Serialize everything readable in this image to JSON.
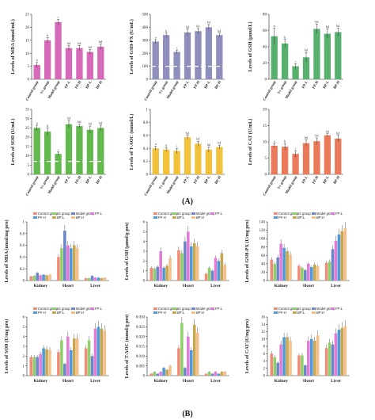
{
  "figure": {
    "label_a": "(A)",
    "label_b": "(B)"
  },
  "colors": {
    "a_panels": [
      "#d66ab8",
      "#8e8fbd",
      "#57b06e",
      "#63b84e",
      "#f2c13a",
      "#ea7a5a"
    ],
    "groups": [
      "#f28b78",
      "#8fcf6a",
      "#6b86c9",
      "#e27bd6",
      "#4c9ad8",
      "#c8a64e",
      "#f3c08c"
    ]
  },
  "chart_data": [
    {
      "type": "bar",
      "panel": "A1",
      "ylabel": "Levels of MDA (nmol/mL)",
      "categories": [
        "Control group",
        "Vc group",
        "Model group",
        "FP-L",
        "FP-H",
        "BP-L",
        "BP-H"
      ],
      "ylim": [
        0,
        25
      ],
      "yticks": [
        0,
        5,
        10,
        15,
        20,
        25
      ],
      "values": [
        5.5,
        15,
        22,
        12,
        12,
        10.5,
        12.5
      ],
      "errors": [
        1,
        1,
        1,
        1,
        1,
        1,
        1
      ],
      "labels": [
        "a",
        "b",
        "c",
        "bd",
        "bd",
        "bd",
        "bd"
      ]
    },
    {
      "type": "bar",
      "panel": "A2",
      "ylabel": "Levels of GSH-PX (U/mL)",
      "categories": [
        "Control group",
        "Vc group",
        "Model group",
        "FP-L",
        "FP-H",
        "BP-L",
        "BP-H"
      ],
      "ylim": [
        0,
        500
      ],
      "yticks": [
        0,
        100,
        200,
        300,
        400,
        500
      ],
      "values": [
        290,
        340,
        210,
        360,
        370,
        400,
        340
      ],
      "errors": [
        15,
        15,
        15,
        25,
        20,
        20,
        15
      ],
      "labels": [
        "a",
        "b",
        "c",
        "bd",
        "bd",
        "bd",
        "bd"
      ]
    },
    {
      "type": "bar",
      "panel": "A3",
      "ylabel": "Levels of GSH (μmol/L)",
      "categories": [
        "Control group",
        "Vc group",
        "Model group",
        "FP-L",
        "FP-H",
        "BP-L",
        "BP-H"
      ],
      "ylim": [
        0,
        80
      ],
      "yticks": [
        0,
        20,
        40,
        60,
        80
      ],
      "values": [
        53,
        44,
        16,
        27,
        62,
        56,
        58
      ],
      "errors": [
        10,
        5,
        3,
        6,
        6,
        6,
        5
      ],
      "labels": [
        "a",
        "b",
        "c",
        "bd",
        "bd",
        "bd",
        "bd"
      ]
    },
    {
      "type": "bar",
      "panel": "A4",
      "ylabel": "Levels of SOD (U/mL)",
      "categories": [
        "Control group",
        "Vc group",
        "Model group",
        "FP-L",
        "FP-H",
        "BP-L",
        "BP-H"
      ],
      "ylim": [
        0,
        35
      ],
      "yticks": [
        0,
        5,
        10,
        15,
        20,
        25,
        30,
        35
      ],
      "values": [
        25,
        23,
        11,
        27,
        26,
        24,
        25
      ],
      "errors": [
        1.5,
        2,
        1,
        2,
        1,
        2,
        1.5
      ],
      "labels": [
        "a",
        "b",
        "c",
        "bd",
        "bd",
        "bd",
        "bd"
      ]
    },
    {
      "type": "bar",
      "panel": "A5",
      "ylabel": "Levels of T-AOC (mmol/L)",
      "categories": [
        "Control group",
        "Vc group",
        "Model group",
        "FP-L",
        "FP-H",
        "BP-L",
        "BP-H"
      ],
      "ylim": [
        0,
        1.0
      ],
      "yticks": [
        0,
        0.2,
        0.4,
        0.6,
        0.8,
        1.0
      ],
      "values": [
        0.4,
        0.38,
        0.36,
        0.57,
        0.47,
        0.38,
        0.42
      ],
      "errors": [
        0.03,
        0.03,
        0.04,
        0.03,
        0.04,
        0.04,
        0.03
      ],
      "labels": [
        "a",
        "b",
        "c",
        "bd",
        "bd",
        "bd",
        "bd"
      ]
    },
    {
      "type": "bar",
      "panel": "A6",
      "ylabel": "Levels of CAT (U/mL)",
      "categories": [
        "Control group",
        "Vc group",
        "Model group",
        "FP-L",
        "FP-H",
        "BP-L",
        "BP-H"
      ],
      "ylim": [
        0,
        20
      ],
      "yticks": [
        0,
        5,
        10,
        15,
        20
      ],
      "values": [
        8.8,
        8.5,
        6.3,
        9.6,
        10.2,
        12,
        11
      ],
      "errors": [
        0.6,
        1,
        1,
        1,
        1,
        0.5,
        1
      ],
      "labels": [
        "a",
        "b",
        "c",
        "bd",
        "bd",
        "bd",
        "bd"
      ]
    },
    {
      "type": "bar",
      "panel": "B1",
      "ylabel": "Levels of MDA (nmol/mg pro)",
      "categories": [
        "Kidney",
        "Heart",
        "Liver"
      ],
      "legend": [
        "Control group",
        "Vc group",
        "Model group",
        "FP-L",
        "FP-H",
        "BP-L",
        "BP-H"
      ],
      "ylim": [
        0,
        1.0
      ],
      "yticks": [
        0,
        0.2,
        0.4,
        0.6,
        0.8,
        1.0
      ],
      "series_values": [
        [
          0.07,
          0.08,
          0.13,
          0.09,
          0.1,
          0.09,
          0.1
        ],
        [
          0.4,
          0.55,
          0.85,
          0.6,
          0.55,
          0.6,
          0.55
        ],
        [
          0.04,
          0.04,
          0.08,
          0.05,
          0.05,
          0.04,
          0.05
        ]
      ]
    },
    {
      "type": "bar",
      "panel": "B2",
      "ylabel": "Levels of GSH (μmol/g pro)",
      "categories": [
        "Kidney",
        "Heart",
        "Liver"
      ],
      "legend": [
        "Control group",
        "Vc group",
        "Model group",
        "FP-L",
        "FP-H",
        "BP-L",
        "BP-H"
      ],
      "ylim": [
        0,
        6
      ],
      "yticks": [
        0,
        1,
        2,
        3,
        4,
        5,
        6
      ],
      "series_values": [
        [
          1.3,
          1.2,
          1.4,
          3.0,
          1.3,
          1.5,
          2.3
        ],
        [
          3.1,
          2.8,
          4.0,
          5.0,
          3.5,
          3.8,
          3.5
        ],
        [
          0.7,
          1.3,
          1.0,
          2.3,
          2.0,
          2.8,
          1.6
        ]
      ]
    },
    {
      "type": "bar",
      "panel": "B3",
      "ylabel": "Levels of GSH-PX (U/mg pro)",
      "categories": [
        "Kidney",
        "Heart",
        "Liver"
      ],
      "legend": [
        "Control group",
        "Vc group",
        "Model group",
        "FP-L",
        "FP-H",
        "BP-L",
        "BP-H"
      ],
      "ylim": [
        0,
        140
      ],
      "yticks": [
        0,
        20,
        40,
        60,
        80,
        100,
        120,
        140
      ],
      "series_values": [
        [
          50,
          40,
          55,
          88,
          78,
          70,
          62
        ],
        [
          35,
          30,
          25,
          40,
          32,
          38,
          34
        ],
        [
          42,
          45,
          75,
          95,
          110,
          118,
          125
        ]
      ]
    },
    {
      "type": "bar",
      "panel": "B4",
      "ylabel": "Levels of SOD (U/mg pro)",
      "categories": [
        "Kidney",
        "Heart",
        "Liver"
      ],
      "legend": [
        "Control group",
        "Vc group",
        "Model group",
        "FP-L",
        "FP-H",
        "BP-L",
        "BP-H"
      ],
      "ylim": [
        0,
        6
      ],
      "yticks": [
        0,
        1,
        2,
        3,
        4,
        5,
        6
      ],
      "series_values": [
        [
          1.9,
          1.9,
          1.9,
          2.2,
          2.8,
          2.7,
          2.6
        ],
        [
          2.4,
          3.6,
          1.2,
          4.0,
          2.6,
          3.8,
          3.8
        ],
        [
          2.8,
          3.6,
          2.0,
          4.8,
          5.0,
          4.8,
          4.6
        ]
      ]
    },
    {
      "type": "bar",
      "panel": "B5",
      "ylabel": "Levels of T-AOC (mmol/g pro)",
      "categories": [
        "Kidney",
        "Heart",
        "Liver"
      ],
      "legend": [
        "Control group",
        "Vc group",
        "Model group",
        "FP-L",
        "FP-H",
        "BP-L",
        "BP-H"
      ],
      "ylim": [
        0,
        0.03
      ],
      "yticks": [
        0,
        0.005,
        0.01,
        0.015,
        0.02,
        0.025,
        0.03
      ],
      "series_values": [
        [
          0.001,
          0.002,
          0.001,
          0.002,
          0.004,
          0.003,
          0.005
        ],
        [
          0.014,
          0.027,
          0.004,
          0.02,
          0.013,
          0.026,
          0.022
        ],
        [
          0.001,
          0.002,
          0.001,
          0.002,
          0.001,
          0.002,
          0.002
        ]
      ]
    },
    {
      "type": "bar",
      "panel": "B6",
      "ylabel": "Levels of CAT (U/mg pro)",
      "categories": [
        "Kidney",
        "Heart",
        "Liver"
      ],
      "legend": [
        "Control group",
        "Vc group",
        "Model group",
        "FP-L",
        "FP-H",
        "BP-L",
        "BP-H"
      ],
      "ylim": [
        0,
        16
      ],
      "yticks": [
        0,
        2,
        4,
        6,
        8,
        10,
        12,
        14,
        16
      ],
      "series_values": [
        [
          6.0,
          5.0,
          3.5,
          8.5,
          10.5,
          10.5,
          9.5
        ],
        [
          5.5,
          5.5,
          2.8,
          9.5,
          10.0,
          9.5,
          11.0
        ],
        [
          7.5,
          9.0,
          8.5,
          11.5,
          12.5,
          13.0,
          13.5
        ]
      ]
    }
  ]
}
